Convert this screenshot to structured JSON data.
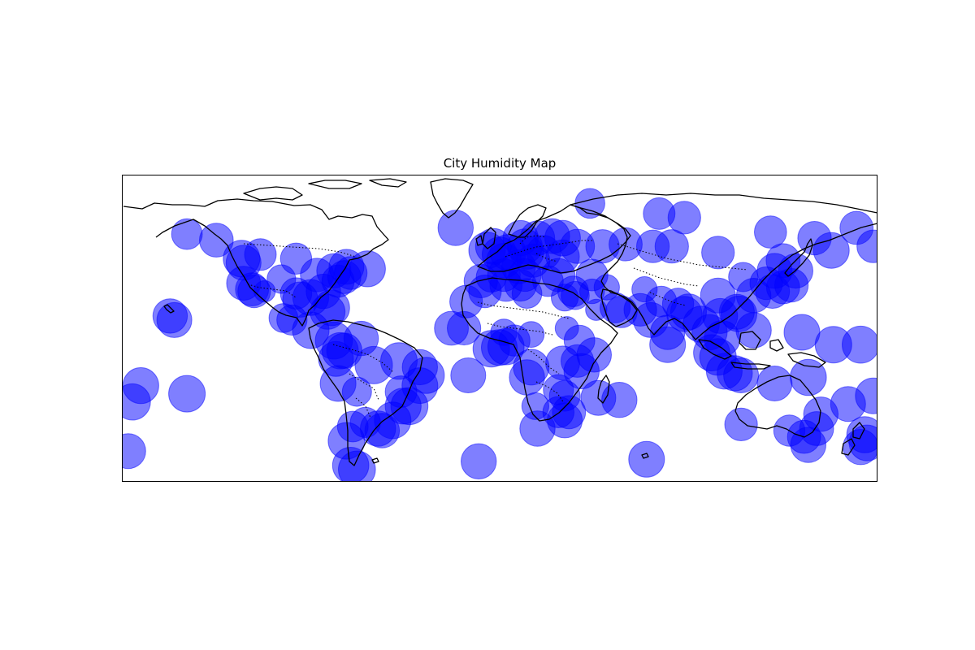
{
  "chart_data": {
    "type": "scatter",
    "title": "City Humidity Map",
    "xlabel": "",
    "ylabel": "",
    "projection": "equirectangular",
    "xlim": [
      -180,
      180
    ],
    "ylim": [
      -60,
      90
    ],
    "grid": false,
    "marker_color": "#0000ff",
    "marker_alpha": 0.5,
    "size_encodes": "humidity (%)",
    "series": [
      {
        "points": [
          {
            "lon": -149,
            "lat": 61,
            "humidity": 62
          },
          {
            "lon": -135,
            "lat": 58,
            "humidity": 75
          },
          {
            "lon": -123,
            "lat": 49,
            "humidity": 88
          },
          {
            "lon": -122,
            "lat": 47,
            "humidity": 80
          },
          {
            "lon": -122,
            "lat": 37,
            "humidity": 76
          },
          {
            "lon": -118,
            "lat": 34,
            "humidity": 72
          },
          {
            "lon": -117,
            "lat": 33,
            "humidity": 70
          },
          {
            "lon": -112,
            "lat": 33,
            "humidity": 30
          },
          {
            "lon": -114,
            "lat": 51,
            "humidity": 66
          },
          {
            "lon": -104,
            "lat": 39,
            "humidity": 54
          },
          {
            "lon": -97,
            "lat": 32,
            "humidity": 65
          },
          {
            "lon": -95,
            "lat": 29,
            "humidity": 82
          },
          {
            "lon": -90,
            "lat": 30,
            "humidity": 85
          },
          {
            "lon": -87,
            "lat": 41,
            "humidity": 74
          },
          {
            "lon": -84,
            "lat": 33,
            "humidity": 78
          },
          {
            "lon": -80,
            "lat": 25,
            "humidity": 84
          },
          {
            "lon": -79,
            "lat": 43,
            "humidity": 77
          },
          {
            "lon": -77,
            "lat": 38,
            "humidity": 69
          },
          {
            "lon": -74,
            "lat": 40,
            "humidity": 72
          },
          {
            "lon": -73,
            "lat": 45,
            "humidity": 80
          },
          {
            "lon": -71,
            "lat": 42,
            "humidity": 71
          },
          {
            "lon": -63,
            "lat": 44,
            "humidity": 85
          },
          {
            "lon": -97,
            "lat": 49,
            "humidity": 64
          },
          {
            "lon": -99,
            "lat": 19,
            "humidity": 60
          },
          {
            "lon": -103,
            "lat": 20,
            "humidity": 55
          },
          {
            "lon": -90,
            "lat": 14,
            "humidity": 88
          },
          {
            "lon": -82,
            "lat": 23,
            "humidity": 80
          },
          {
            "lon": -79,
            "lat": 9,
            "humidity": 90
          },
          {
            "lon": -76,
            "lat": 4,
            "humidity": 86
          },
          {
            "lon": -74,
            "lat": 4,
            "humidity": 82
          },
          {
            "lon": -66,
            "lat": 10,
            "humidity": 78
          },
          {
            "lon": -78,
            "lat": 0,
            "humidity": 80
          },
          {
            "lon": -77,
            "lat": -12,
            "humidity": 84
          },
          {
            "lon": -68,
            "lat": -16,
            "humidity": 56
          },
          {
            "lon": -60,
            "lat": -3,
            "humidity": 92
          },
          {
            "lon": -48,
            "lat": -1,
            "humidity": 88
          },
          {
            "lon": -38,
            "lat": -4,
            "humidity": 82
          },
          {
            "lon": -35,
            "lat": -8,
            "humidity": 86
          },
          {
            "lon": -38,
            "lat": -13,
            "humidity": 84
          },
          {
            "lon": -47,
            "lat": -16,
            "humidity": 66
          },
          {
            "lon": -43,
            "lat": -23,
            "humidity": 90
          },
          {
            "lon": -46,
            "lat": -23,
            "humidity": 85
          },
          {
            "lon": -51,
            "lat": -30,
            "humidity": 88
          },
          {
            "lon": -56,
            "lat": -35,
            "humidity": 79
          },
          {
            "lon": -58,
            "lat": -34,
            "humidity": 82
          },
          {
            "lon": -70,
            "lat": -33,
            "humidity": 62
          },
          {
            "lon": -64,
            "lat": -31,
            "humidity": 60
          },
          {
            "lon": -73,
            "lat": -40,
            "humidity": 88
          },
          {
            "lon": -71,
            "lat": -52,
            "humidity": 86
          },
          {
            "lon": -68,
            "lat": -54,
            "humidity": 90
          },
          {
            "lon": -157,
            "lat": 21,
            "humidity": 78
          },
          {
            "lon": -155,
            "lat": 19,
            "humidity": 80
          },
          {
            "lon": -171,
            "lat": -13,
            "humidity": 85
          },
          {
            "lon": -175,
            "lat": -21,
            "humidity": 86
          },
          {
            "lon": -149,
            "lat": -17,
            "humidity": 88
          },
          {
            "lon": -177,
            "lat": -45,
            "humidity": 80
          },
          {
            "lon": -21,
            "lat": 64,
            "humidity": 82
          },
          {
            "lon": -23,
            "lat": 15,
            "humidity": 76
          },
          {
            "lon": -16,
            "lat": 28,
            "humidity": 70
          },
          {
            "lon": -15,
            "lat": -8,
            "humidity": 80
          },
          {
            "lon": -10,
            "lat": -50,
            "humidity": 82
          },
          {
            "lon": -6,
            "lat": 53,
            "humidity": 88
          },
          {
            "lon": -3,
            "lat": 55,
            "humidity": 84
          },
          {
            "lon": 0,
            "lat": 51,
            "humidity": 81
          },
          {
            "lon": -9,
            "lat": 38,
            "humidity": 74
          },
          {
            "lon": -4,
            "lat": 40,
            "humidity": 60
          },
          {
            "lon": 2,
            "lat": 41,
            "humidity": 70
          },
          {
            "lon": 2,
            "lat": 48,
            "humidity": 79
          },
          {
            "lon": 4,
            "lat": 52,
            "humidity": 84
          },
          {
            "lon": 12,
            "lat": 55,
            "humidity": 80
          },
          {
            "lon": 18,
            "lat": 59,
            "humidity": 78
          },
          {
            "lon": 10,
            "lat": 59,
            "humidity": 82
          },
          {
            "lon": 25,
            "lat": 60,
            "humidity": 80
          },
          {
            "lon": 13,
            "lat": 52,
            "humidity": 74
          },
          {
            "lon": 16,
            "lat": 48,
            "humidity": 72
          },
          {
            "lon": 21,
            "lat": 52,
            "humidity": 76
          },
          {
            "lon": 12,
            "lat": 41,
            "humidity": 70
          },
          {
            "lon": 9,
            "lat": 45,
            "humidity": 75
          },
          {
            "lon": 23,
            "lat": 38,
            "humidity": 62
          },
          {
            "lon": 28,
            "lat": 41,
            "humidity": 72
          },
          {
            "lon": 37,
            "lat": 55,
            "humidity": 77
          },
          {
            "lon": 30,
            "lat": 59,
            "humidity": 83
          },
          {
            "lon": 30,
            "lat": 50,
            "humidity": 74
          },
          {
            "lon": 44,
            "lat": 41,
            "humidity": 66
          },
          {
            "lon": 49,
            "lat": 55,
            "humidity": 74
          },
          {
            "lon": 60,
            "lat": 56,
            "humidity": 72
          },
          {
            "lon": 73,
            "lat": 55,
            "humidity": 70
          },
          {
            "lon": 82,
            "lat": 55,
            "humidity": 74
          },
          {
            "lon": 104,
            "lat": 52,
            "humidity": 70
          },
          {
            "lon": 129,
            "lat": 62,
            "humidity": 68
          },
          {
            "lon": 135,
            "lat": 48,
            "humidity": 76
          },
          {
            "lon": 131,
            "lat": 43,
            "humidity": 80
          },
          {
            "lon": 150,
            "lat": 59,
            "humidity": 74
          },
          {
            "lon": 158,
            "lat": 53,
            "humidity": 84
          },
          {
            "lon": 170,
            "lat": 64,
            "humidity": 72
          },
          {
            "lon": 178,
            "lat": 55,
            "humidity": 70
          },
          {
            "lon": 76,
            "lat": 71,
            "humidity": 66
          },
          {
            "lon": 88,
            "lat": 69,
            "humidity": 70
          },
          {
            "lon": 43,
            "lat": 76,
            "humidity": 58
          },
          {
            "lon": 3,
            "lat": 36,
            "humidity": 68
          },
          {
            "lon": 10,
            "lat": 36,
            "humidity": 66
          },
          {
            "lon": -7,
            "lat": 33,
            "humidity": 70
          },
          {
            "lon": 13,
            "lat": 32,
            "humidity": 58
          },
          {
            "lon": 31,
            "lat": 30,
            "humidity": 48
          },
          {
            "lon": 35,
            "lat": 33,
            "humidity": 62
          },
          {
            "lon": 36,
            "lat": 31,
            "humidity": 52
          },
          {
            "lon": 44,
            "lat": 33,
            "humidity": 40
          },
          {
            "lon": 51,
            "lat": 35,
            "humidity": 42
          },
          {
            "lon": 46,
            "lat": 24,
            "humidity": 30
          },
          {
            "lon": 55,
            "lat": 25,
            "humidity": 60
          },
          {
            "lon": 58,
            "lat": 23,
            "humidity": 66
          },
          {
            "lon": 69,
            "lat": 34,
            "humidity": 42
          },
          {
            "lon": 67,
            "lat": 24,
            "humidity": 70
          },
          {
            "lon": 77,
            "lat": 28,
            "humidity": 62
          },
          {
            "lon": 72,
            "lat": 19,
            "humidity": 80
          },
          {
            "lon": 80,
            "lat": 13,
            "humidity": 78
          },
          {
            "lon": 88,
            "lat": 22,
            "humidity": 82
          },
          {
            "lon": 85,
            "lat": 27,
            "humidity": 64
          },
          {
            "lon": 90,
            "lat": 23,
            "humidity": 84
          },
          {
            "lon": 80,
            "lat": 7,
            "humidity": 84
          },
          {
            "lon": 96,
            "lat": 17,
            "humidity": 86
          },
          {
            "lon": 100,
            "lat": 13,
            "humidity": 82
          },
          {
            "lon": 105,
            "lat": 21,
            "humidity": 80
          },
          {
            "lon": 106,
            "lat": 10,
            "humidity": 84
          },
          {
            "lon": 101,
            "lat": 3,
            "humidity": 86
          },
          {
            "lon": 104,
            "lat": 1,
            "humidity": 88
          },
          {
            "lon": 107,
            "lat": -6,
            "humidity": 84
          },
          {
            "lon": 112,
            "lat": -7,
            "humidity": 82
          },
          {
            "lon": 115,
            "lat": -8,
            "humidity": 80
          },
          {
            "lon": 121,
            "lat": 14,
            "humidity": 82
          },
          {
            "lon": 114,
            "lat": 22,
            "humidity": 84
          },
          {
            "lon": 113,
            "lat": 23,
            "humidity": 80
          },
          {
            "lon": 121,
            "lat": 31,
            "humidity": 78
          },
          {
            "lon": 116,
            "lat": 40,
            "humidity": 56
          },
          {
            "lon": 104,
            "lat": 31,
            "humidity": 80
          },
          {
            "lon": 127,
            "lat": 37,
            "humidity": 70
          },
          {
            "lon": 139,
            "lat": 36,
            "humidity": 74
          },
          {
            "lon": 135,
            "lat": 35,
            "humidity": 72
          },
          {
            "lon": 130,
            "lat": 33,
            "humidity": 76
          },
          {
            "lon": 141,
            "lat": 43,
            "humidity": 78
          },
          {
            "lon": 147,
            "lat": -9,
            "humidity": 86
          },
          {
            "lon": 131,
            "lat": -12,
            "humidity": 80
          },
          {
            "lon": 115,
            "lat": -32,
            "humidity": 70
          },
          {
            "lon": 138,
            "lat": -35,
            "humidity": 64
          },
          {
            "lon": 145,
            "lat": -38,
            "humidity": 72
          },
          {
            "lon": 151,
            "lat": -34,
            "humidity": 76
          },
          {
            "lon": 153,
            "lat": -27,
            "humidity": 78
          },
          {
            "lon": 147,
            "lat": -42,
            "humidity": 82
          },
          {
            "lon": 166,
            "lat": -22,
            "humidity": 80
          },
          {
            "lon": 178,
            "lat": -18,
            "humidity": 84
          },
          {
            "lon": 174,
            "lat": -37,
            "humidity": 86
          },
          {
            "lon": 172,
            "lat": -43,
            "humidity": 82
          },
          {
            "lon": 175,
            "lat": -41,
            "humidity": 84
          },
          {
            "lon": 159,
            "lat": 7,
            "humidity": 88
          },
          {
            "lon": 172,
            "lat": 7,
            "humidity": 90
          },
          {
            "lon": 144,
            "lat": 13,
            "humidity": 84
          },
          {
            "lon": 70,
            "lat": -49,
            "humidity": 84
          },
          {
            "lon": -17,
            "lat": 15,
            "humidity": 74
          },
          {
            "lon": -4,
            "lat": 5,
            "humidity": 88
          },
          {
            "lon": -0.2,
            "lat": 5.6,
            "humidity": 84
          },
          {
            "lon": 3,
            "lat": 6,
            "humidity": 86
          },
          {
            "lon": 7,
            "lat": 9,
            "humidity": 64
          },
          {
            "lon": 2,
            "lat": 13,
            "humidity": 46
          },
          {
            "lon": 15,
            "lat": 12,
            "humidity": 44
          },
          {
            "lon": 32,
            "lat": 15,
            "humidity": 36
          },
          {
            "lon": 38,
            "lat": 9,
            "humidity": 62
          },
          {
            "lon": 45,
            "lat": 2,
            "humidity": 78
          },
          {
            "lon": 37,
            "lat": -1,
            "humidity": 70
          },
          {
            "lon": 39,
            "lat": -6,
            "humidity": 82
          },
          {
            "lon": 30,
            "lat": -2,
            "humidity": 76
          },
          {
            "lon": 15,
            "lat": -4,
            "humidity": 84
          },
          {
            "lon": 13,
            "lat": -9,
            "humidity": 82
          },
          {
            "lon": 28,
            "lat": -15,
            "humidity": 60
          },
          {
            "lon": 31,
            "lat": -18,
            "humidity": 62
          },
          {
            "lon": 33,
            "lat": -26,
            "humidity": 72
          },
          {
            "lon": 28,
            "lat": -26,
            "humidity": 64
          },
          {
            "lon": 31,
            "lat": -30,
            "humidity": 80
          },
          {
            "lon": 18,
            "lat": -34,
            "humidity": 82
          },
          {
            "lon": 17,
            "lat": -23,
            "humidity": 48
          },
          {
            "lon": 47,
            "lat": -19,
            "humidity": 80
          },
          {
            "lon": 57,
            "lat": -20,
            "humidity": 82
          }
        ]
      }
    ]
  }
}
